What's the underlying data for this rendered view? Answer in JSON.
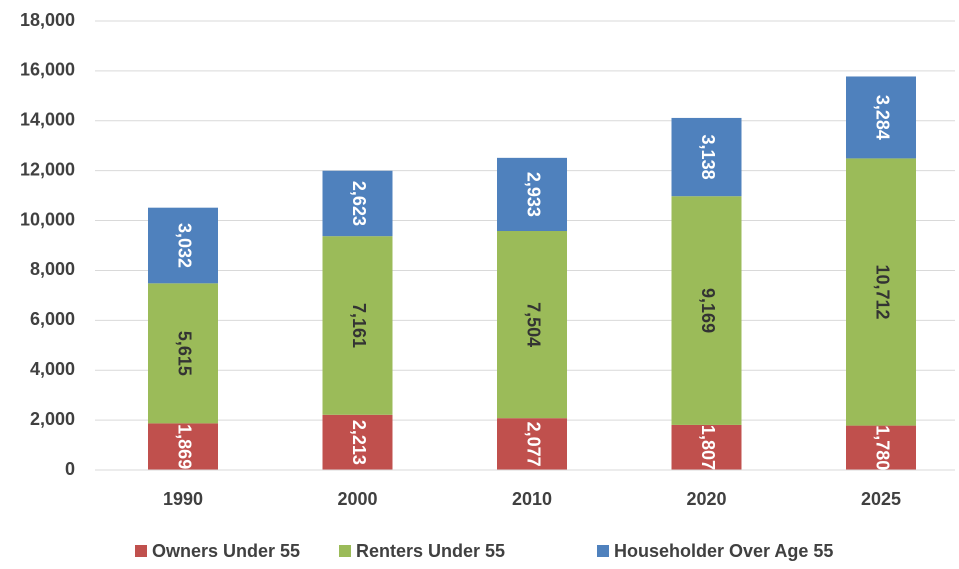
{
  "chart_data": {
    "type": "stacked_bar",
    "categories": [
      "1990",
      "2000",
      "2010",
      "2020",
      "2025"
    ],
    "series": [
      {
        "name": "Owners Under 55",
        "color": "#c0504d",
        "values": [
          1869,
          2213,
          2077,
          1807,
          1780
        ],
        "value_labels": [
          "1,869",
          "2,213",
          "2,077",
          "1,807",
          "1,780"
        ],
        "label_color": "#ffffff"
      },
      {
        "name": "Renters Under 55",
        "color": "#9bbb59",
        "values": [
          5615,
          7161,
          7504,
          9169,
          10712
        ],
        "value_labels": [
          "5,615",
          "7,161",
          "7,504",
          "9,169",
          "10,712"
        ],
        "label_color": "#333333"
      },
      {
        "name": "Householder Over Age 55",
        "color": "#4f81bd",
        "values": [
          3032,
          2623,
          2933,
          3138,
          3284
        ],
        "value_labels": [
          "3,032",
          "2,623",
          "2,933",
          "3,138",
          "3,284"
        ],
        "label_color": "#ffffff"
      }
    ],
    "ylim": [
      0,
      18000
    ],
    "yticks": [
      0,
      {
        "value": 2000,
        "label": "2,000"
      },
      {
        "value": 4000,
        "label": "4,000"
      },
      {
        "value": 6000,
        "label": "6,000"
      },
      {
        "value": 8000,
        "label": "8,000"
      },
      {
        "value": 10000,
        "label": "10,000"
      },
      {
        "value": 12000,
        "label": "12,000"
      },
      {
        "value": 14000,
        "label": "14,000"
      },
      {
        "value": 16000,
        "label": "16,000"
      },
      {
        "value": 18000,
        "label": "18,000"
      }
    ],
    "grid": true,
    "legend": "bottom"
  }
}
